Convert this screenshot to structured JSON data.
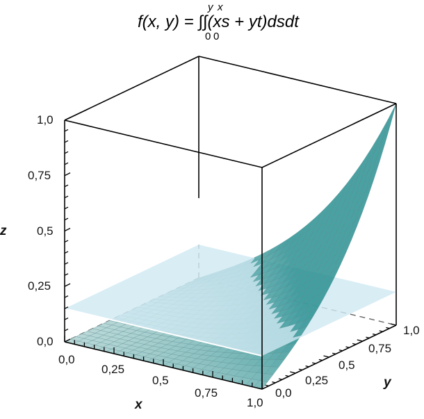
{
  "title": {
    "lhs": "f(x, y) = ",
    "upper_limits": [
      "y",
      "x"
    ],
    "lower_limits": [
      "0",
      "0"
    ],
    "integrand": "(xs + yt)dsdt",
    "full": "f(x, y) = ∫0^y ∫0^x (xs + yt) ds dt"
  },
  "chart_data": {
    "type": "surface3d",
    "title": "f(x, y) = ∫0^y ∫0^x (xs + yt) ds dt",
    "function": "(x^3*y + x*y^3)/2",
    "plane": {
      "z": 0.15,
      "color": "#cfe8f2",
      "opacity": 0.8
    },
    "surface_color": "#2a9a9a",
    "grid": true,
    "xlabel": "x",
    "ylabel": "y",
    "zlabel": "z",
    "xlim": [
      0,
      1
    ],
    "ylim": [
      0,
      1
    ],
    "zlim": [
      0,
      1
    ],
    "x_ticks": [
      "0,0",
      "0,25",
      "0,5",
      "0,75",
      "1,0"
    ],
    "y_ticks": [
      "0,0",
      "0,25",
      "0,5",
      "0,75",
      "1,0"
    ],
    "z_ticks": [
      "0,0",
      "0,25",
      "0,5",
      "0,75",
      "1,0"
    ],
    "sample_values": [
      {
        "x": 0,
        "y": 0,
        "z": 0
      },
      {
        "x": 0.5,
        "y": 0.5,
        "z": 0.0625
      },
      {
        "x": 1,
        "y": 0.5,
        "z": 0.3125
      },
      {
        "x": 0.5,
        "y": 1,
        "z": 0.3125
      },
      {
        "x": 1,
        "y": 1,
        "z": 1.0
      }
    ]
  },
  "axes": {
    "x_label": "x",
    "y_label": "y",
    "z_label": "z",
    "x_ticks": [
      "0,0",
      "0,25",
      "0,5",
      "0,75",
      "1,0"
    ],
    "y_ticks": [
      "0,0",
      "0,25",
      "0,5",
      "0,75",
      "1,0"
    ],
    "z_ticks": [
      "0,0",
      "0,25",
      "0,5",
      "0,75",
      "1,0"
    ]
  }
}
